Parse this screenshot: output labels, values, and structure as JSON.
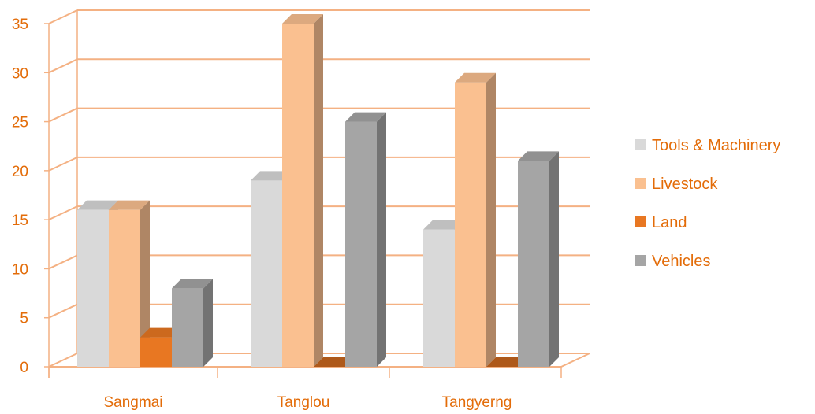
{
  "chart_data": {
    "type": "bar",
    "categories": [
      "Sangmai",
      "Tanglou",
      "Tangyerng"
    ],
    "series": [
      {
        "name": "Tools & Machinery",
        "values": [
          16,
          19,
          14
        ],
        "color": "#d9d9d9"
      },
      {
        "name": "Livestock",
        "values": [
          16,
          35,
          29
        ],
        "color": "#fac090"
      },
      {
        "name": "Land",
        "values": [
          3,
          0,
          0
        ],
        "color": "#e87722"
      },
      {
        "name": "Vehicles",
        "values": [
          8,
          25,
          21
        ],
        "color": "#a5a5a5"
      }
    ],
    "y_ticks": [
      "0",
      "5",
      "10",
      "15",
      "20",
      "25",
      "30",
      "35"
    ],
    "ylim": [
      0,
      35
    ],
    "title": "",
    "xlabel": "",
    "ylabel": "",
    "grid": true,
    "legend_position": "right",
    "style": "3d-clustered-column",
    "colors": {
      "text": "#e36c09",
      "grid": "#f4b183",
      "axis": "#f4b183"
    }
  }
}
